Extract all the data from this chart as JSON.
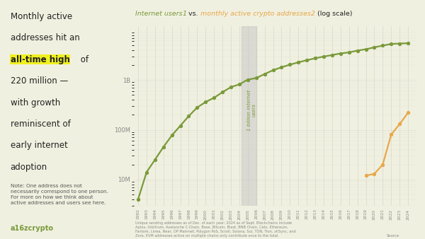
{
  "background_color": "#f0f0e0",
  "left_panel_color": "#e4e8d0",
  "title_text1": "Internet users",
  "title_sup1": "1",
  "title_text2": " vs. ",
  "title_text3": "monthly active crypto addresses",
  "title_sup2": "2",
  "title_text4": " (log scale)",
  "note_text": "Note: One address does not\nnecessarily correspond to one person.\nFor more on how we think about\nactive addresses and users see here.",
  "footnote_text": "Unique sending addresses as of Dec. of each year; 2024 as of Sept. Blockchains include\nAptos, Arbitrum, Avalanche C-Chain, Base, Bitcoin, Blast, BNB Chain, Celo, Ethereum,\nFantom, Linea, Near, OP Mainnet, Polygon PoS, Scroll, Solana, Sui, TON, Tron, zkSync, and\nZora. EVM addresses active on multiple chains only contribute once to the total.",
  "internet_color": "#7a9a3a",
  "crypto_color": "#e8a84a",
  "dark_text": "#222222",
  "mid_text": "#555555",
  "light_text": "#888888",
  "internet_years": [
    1992,
    1993,
    1994,
    1995,
    1996,
    1997,
    1998,
    1999,
    2000,
    2001,
    2002,
    2003,
    2004,
    2005,
    2006,
    2007,
    2008,
    2009,
    2010,
    2011,
    2012,
    2013,
    2014,
    2015,
    2016,
    2017,
    2018,
    2019,
    2020,
    2021,
    2022,
    2023,
    2024
  ],
  "internet_values": [
    4000000.0,
    14000000.0,
    25000000.0,
    45000000.0,
    77000000.0,
    120000000.0,
    188000000.0,
    280000000.0,
    361000000.0,
    439000000.0,
    569000000.0,
    719000000.0,
    817000000.0,
    1018000000.0,
    1093000000.0,
    1319000000.0,
    1574000000.0,
    1802000000.0,
    2034000000.0,
    2268000000.0,
    2497000000.0,
    2738000000.0,
    2956000000.0,
    3174000000.0,
    3424000000.0,
    3578000000.0,
    3900000000.0,
    4148000000.0,
    4540000000.0,
    4910000000.0,
    5300000000.0,
    5400000000.0,
    5500000000.0
  ],
  "crypto_years": [
    2019,
    2020,
    2021,
    2022,
    2023,
    2024
  ],
  "crypto_values": [
    12000000.0,
    13000000.0,
    20000000.0,
    80000000.0,
    130000000.0,
    220000000.0
  ],
  "shade_start": 2004.3,
  "shade_end": 2006.0,
  "ylim": [
    3000000.0,
    12000000000.0
  ],
  "xlim": [
    1991.5,
    2025.0
  ]
}
